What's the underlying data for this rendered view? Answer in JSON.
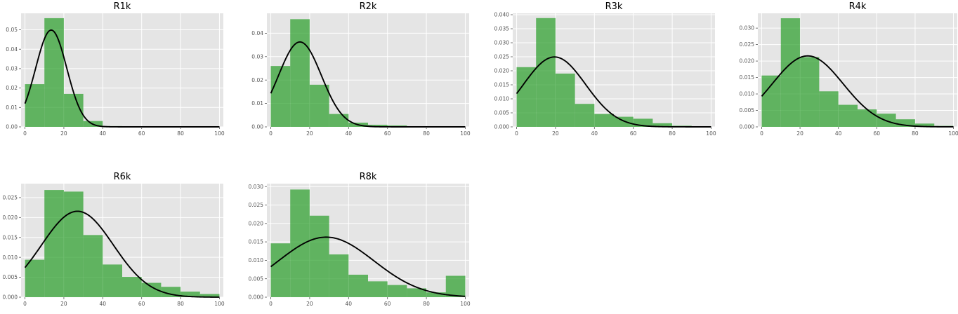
{
  "colors": {
    "bar": "#2ca02c",
    "curve": "#000000",
    "background": "#e5e5e5",
    "grid": "#ffffff"
  },
  "chart_data": [
    {
      "type": "bar",
      "title": "R1k",
      "bin_edges": [
        0,
        10,
        20,
        30,
        40,
        50,
        60,
        70,
        80,
        90,
        100
      ],
      "values": [
        0.022,
        0.056,
        0.017,
        0.003,
        0.0004,
        0.0002,
        0.0001,
        0.0001,
        0.0001,
        0.0001
      ],
      "fit_curve": {
        "type": "normal-pdf",
        "mean": 13.5,
        "std": 8.0
      },
      "xlim": [
        -2,
        102
      ],
      "ylim": [
        0,
        0.0585
      ],
      "xticks": [
        0,
        20,
        40,
        60,
        80,
        100
      ],
      "yticks": [
        0.0,
        0.01,
        0.02,
        0.03,
        0.04,
        0.05
      ],
      "ytick_labels": [
        "0.00",
        "0.01",
        "0.02",
        "0.03",
        "0.04",
        "0.05"
      ],
      "grid": true
    },
    {
      "type": "bar",
      "title": "R2k",
      "bin_edges": [
        0,
        10,
        20,
        30,
        40,
        50,
        60,
        70,
        80,
        90,
        100
      ],
      "values": [
        0.026,
        0.046,
        0.018,
        0.0055,
        0.0018,
        0.0009,
        0.0006,
        0.0002,
        0.0001,
        0.0001
      ],
      "fit_curve": {
        "type": "normal-pdf",
        "mean": 15.0,
        "std": 11.0
      },
      "xlim": [
        -2,
        102
      ],
      "ylim": [
        0,
        0.0485
      ],
      "xticks": [
        0,
        20,
        40,
        60,
        80,
        100
      ],
      "yticks": [
        0.0,
        0.01,
        0.02,
        0.03,
        0.04
      ],
      "ytick_labels": [
        "0.00",
        "0.01",
        "0.02",
        "0.03",
        "0.04"
      ],
      "grid": true
    },
    {
      "type": "bar",
      "title": "R3k",
      "bin_edges": [
        0,
        10,
        20,
        30,
        40,
        50,
        60,
        70,
        80,
        90,
        100
      ],
      "values": [
        0.0213,
        0.0388,
        0.019,
        0.0082,
        0.0046,
        0.0036,
        0.0029,
        0.0013,
        0.0004,
        0.0002
      ],
      "fit_curve": {
        "type": "normal-pdf",
        "mean": 19.5,
        "std": 16.0
      },
      "xlim": [
        -2,
        102
      ],
      "ylim": [
        0,
        0.0405
      ],
      "xticks": [
        0,
        20,
        40,
        60,
        80,
        100
      ],
      "yticks": [
        0.0,
        0.005,
        0.01,
        0.015,
        0.02,
        0.025,
        0.03,
        0.035,
        0.04
      ],
      "ytick_labels": [
        "0.000",
        "0.005",
        "0.010",
        "0.015",
        "0.020",
        "0.025",
        "0.030",
        "0.035",
        "0.040"
      ],
      "grid": true
    },
    {
      "type": "bar",
      "title": "R4k",
      "bin_edges": [
        0,
        10,
        20,
        30,
        40,
        50,
        60,
        70,
        80,
        90,
        100
      ],
      "values": [
        0.0156,
        0.033,
        0.0212,
        0.0108,
        0.0067,
        0.0053,
        0.004,
        0.0023,
        0.001,
        0.0003
      ],
      "fit_curve": {
        "type": "normal-pdf",
        "mean": 24.0,
        "std": 18.5
      },
      "xlim": [
        -2,
        102
      ],
      "ylim": [
        0,
        0.0345
      ],
      "xticks": [
        0,
        20,
        40,
        60,
        80,
        100
      ],
      "yticks": [
        0.0,
        0.005,
        0.01,
        0.015,
        0.02,
        0.025,
        0.03
      ],
      "ytick_labels": [
        "0.000",
        "0.005",
        "0.010",
        "0.015",
        "0.020",
        "0.025",
        "0.030"
      ],
      "grid": true
    },
    {
      "type": "bar",
      "title": "R6k",
      "bin_edges": [
        0,
        10,
        20,
        30,
        40,
        50,
        60,
        70,
        80,
        90,
        100
      ],
      "values": [
        0.0094,
        0.0269,
        0.0265,
        0.0156,
        0.0082,
        0.0051,
        0.0036,
        0.0026,
        0.0014,
        0.0008
      ],
      "fit_curve": {
        "type": "normal-pdf",
        "mean": 27.0,
        "std": 18.5
      },
      "xlim": [
        -2,
        102
      ],
      "ylim": [
        0,
        0.0285
      ],
      "xticks": [
        0,
        20,
        40,
        60,
        80,
        100
      ],
      "yticks": [
        0.0,
        0.005,
        0.01,
        0.015,
        0.02,
        0.025
      ],
      "ytick_labels": [
        "0.000",
        "0.005",
        "0.010",
        "0.015",
        "0.020",
        "0.025"
      ],
      "grid": true
    },
    {
      "type": "bar",
      "title": "R8k",
      "bin_edges": [
        0,
        10,
        20,
        30,
        40,
        50,
        60,
        70,
        80,
        90,
        100
      ],
      "values": [
        0.0146,
        0.0292,
        0.0221,
        0.0116,
        0.0061,
        0.0043,
        0.0033,
        0.0024,
        0.0013,
        0.0058
      ],
      "fit_curve": {
        "type": "normal-pdf",
        "mean": 28.5,
        "std": 24.5
      },
      "xlim": [
        -2,
        102
      ],
      "ylim": [
        0,
        0.0308
      ],
      "xticks": [
        0,
        20,
        40,
        60,
        80,
        100
      ],
      "yticks": [
        0.0,
        0.005,
        0.01,
        0.015,
        0.02,
        0.025,
        0.03
      ],
      "ytick_labels": [
        "0.000",
        "0.005",
        "0.010",
        "0.015",
        "0.020",
        "0.025",
        "0.030"
      ],
      "grid": true
    }
  ]
}
